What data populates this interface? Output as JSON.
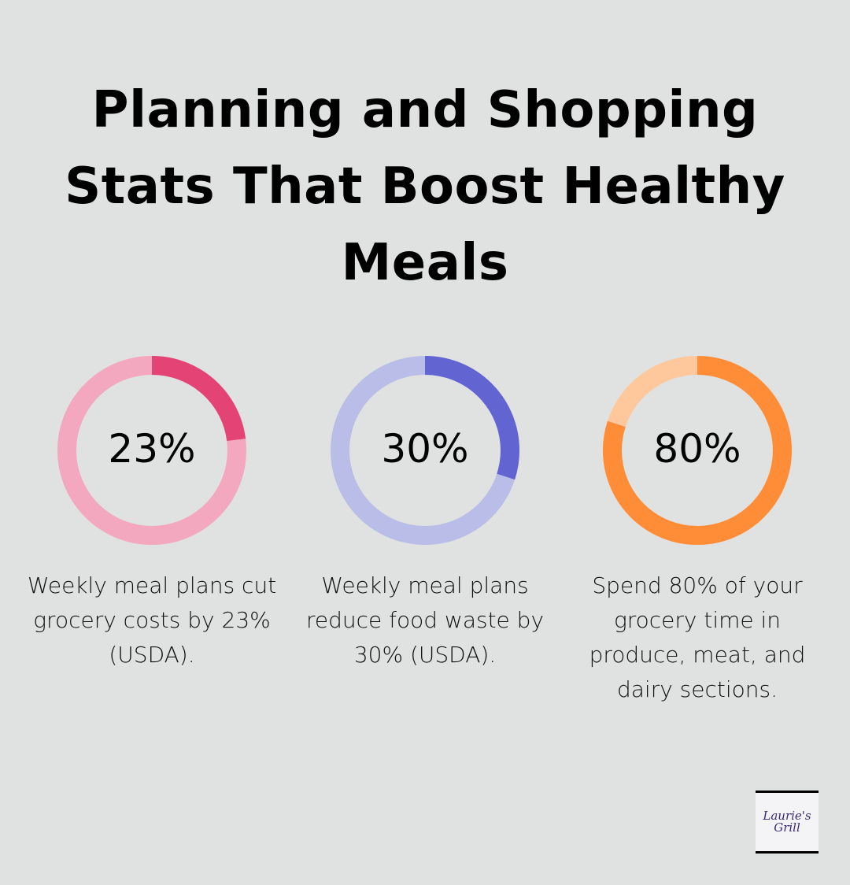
{
  "title": "Planning and Shopping Stats That Boost Healthy Meals",
  "chart_data": [
    {
      "type": "pie",
      "variant": "donut",
      "value": 23,
      "max": 100,
      "label": "23%",
      "description": "Weekly meal plans cut grocery costs by 23% (USDA).",
      "colors": {
        "highlight": "#e44375",
        "track": "#f3a8c0"
      }
    },
    {
      "type": "pie",
      "variant": "donut",
      "value": 30,
      "max": 100,
      "label": "30%",
      "description": "Weekly meal plans reduce food waste by 30% (USDA).",
      "colors": {
        "highlight": "#6264d1",
        "track": "#bbbde9"
      }
    },
    {
      "type": "pie",
      "variant": "donut",
      "value": 80,
      "max": 100,
      "label": "80%",
      "description": "Spend 80% of your grocery time in produce, meat, and dairy sections.",
      "colors": {
        "highlight": "#ff8c36",
        "track": "#ffc89c"
      }
    }
  ],
  "logo": {
    "line1": "Laurie's",
    "line2": "Grill"
  }
}
